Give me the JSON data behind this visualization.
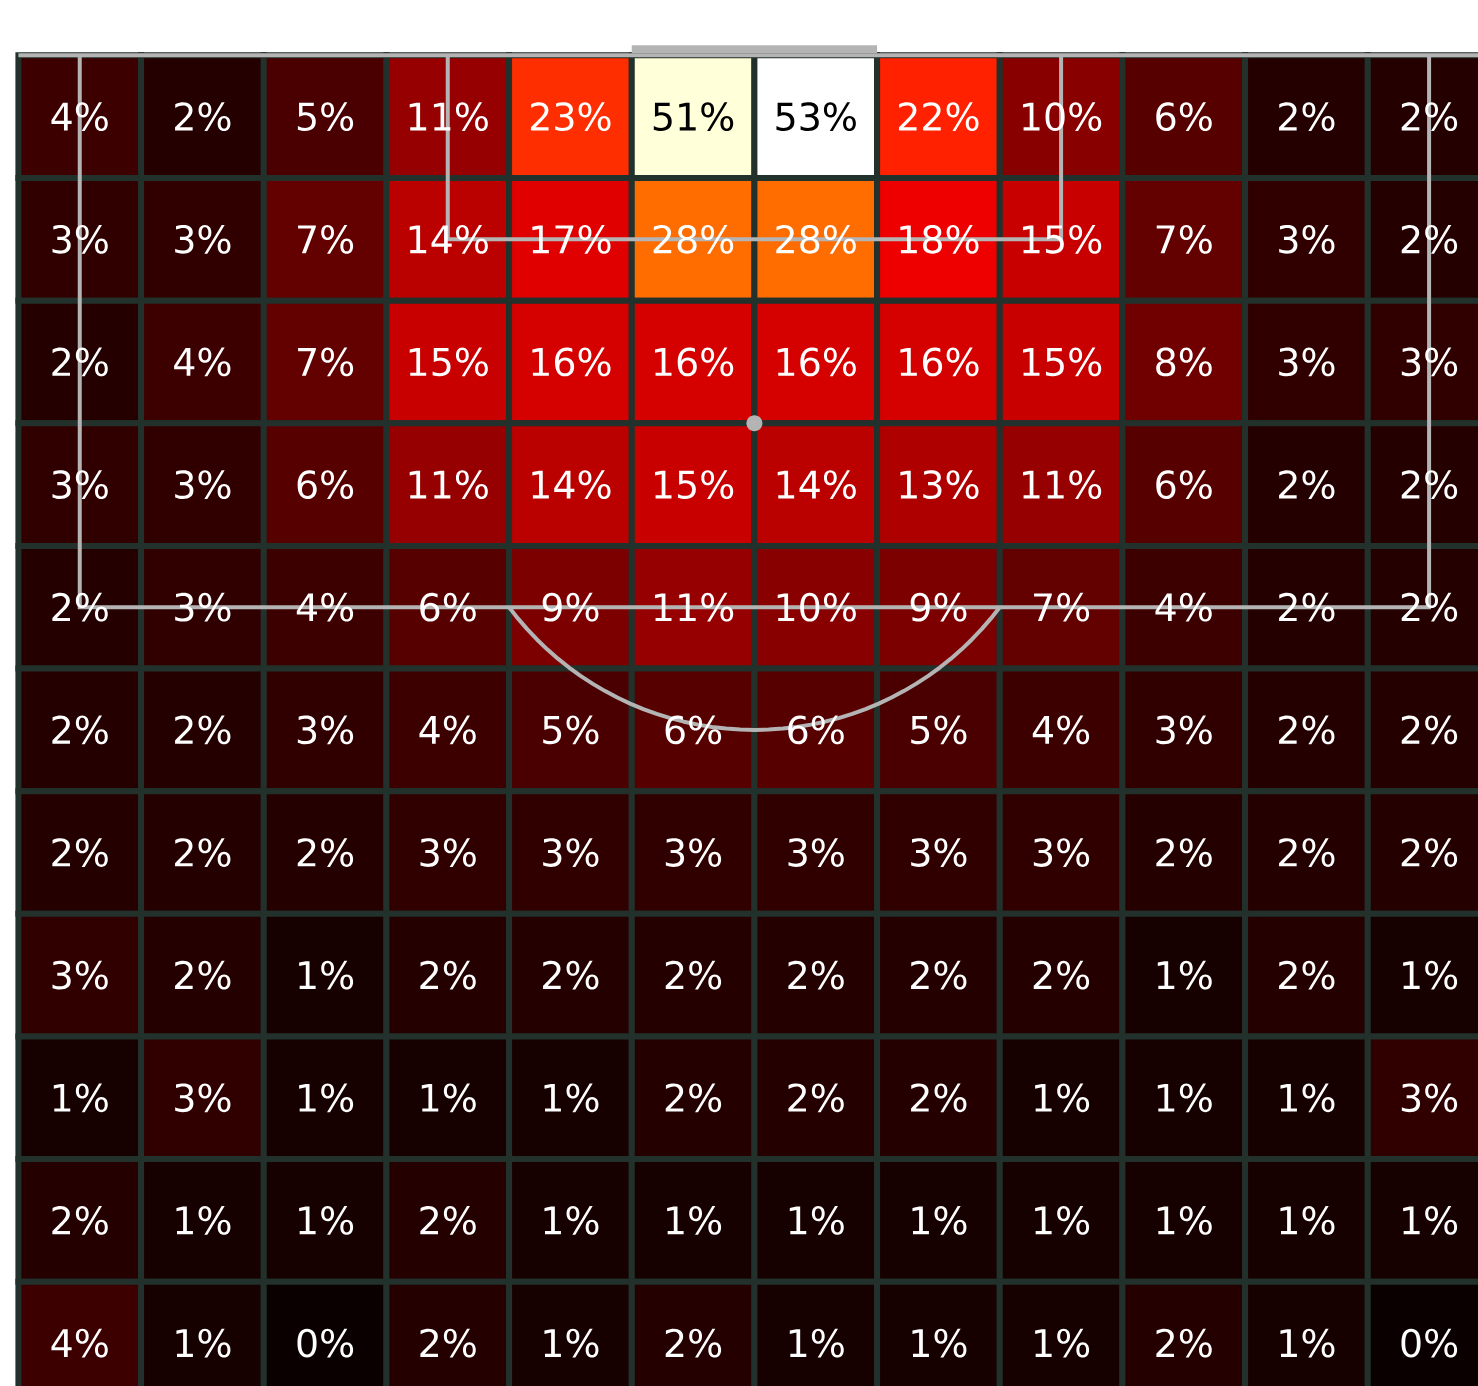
{
  "chart_data": {
    "type": "heatmap",
    "categories": [
      null,
      null,
      null,
      null,
      null,
      null,
      null,
      null,
      null,
      null,
      null,
      null
    ],
    "y_categories": [
      null,
      null,
      null,
      null,
      null,
      null,
      null,
      null,
      null,
      null,
      null
    ],
    "cells": [
      [
        4,
        2,
        5,
        11,
        23,
        51,
        53,
        22,
        10,
        6,
        2,
        2
      ],
      [
        3,
        3,
        7,
        14,
        17,
        28,
        28,
        18,
        15,
        7,
        3,
        2
      ],
      [
        2,
        4,
        7,
        15,
        16,
        16,
        16,
        16,
        15,
        8,
        3,
        3
      ],
      [
        3,
        3,
        6,
        11,
        14,
        15,
        14,
        13,
        11,
        6,
        2,
        2
      ],
      [
        2,
        3,
        4,
        6,
        9,
        11,
        10,
        9,
        7,
        4,
        2,
        2
      ],
      [
        2,
        2,
        3,
        4,
        5,
        6,
        6,
        5,
        4,
        3,
        2,
        2
      ],
      [
        2,
        2,
        2,
        3,
        3,
        3,
        3,
        3,
        3,
        2,
        2,
        2
      ],
      [
        3,
        2,
        1,
        2,
        2,
        2,
        2,
        2,
        2,
        1,
        2,
        1
      ],
      [
        1,
        3,
        1,
        1,
        1,
        2,
        2,
        2,
        1,
        1,
        1,
        3
      ],
      [
        2,
        1,
        1,
        2,
        1,
        1,
        1,
        1,
        1,
        1,
        1,
        1
      ],
      [
        4,
        1,
        0,
        2,
        1,
        2,
        1,
        1,
        1,
        2,
        1,
        0
      ]
    ],
    "cell_labels": [
      [
        "4%",
        "2%",
        "5%",
        "11%",
        "23%",
        "51%",
        "53%",
        "22%",
        "10%",
        "6%",
        "2%",
        "2%"
      ],
      [
        "3%",
        "3%",
        "7%",
        "14%",
        "17%",
        "28%",
        "28%",
        "18%",
        "15%",
        "7%",
        "3%",
        "2%"
      ],
      [
        "2%",
        "4%",
        "7%",
        "15%",
        "16%",
        "16%",
        "16%",
        "16%",
        "15%",
        "8%",
        "3%",
        "3%"
      ],
      [
        "3%",
        "3%",
        "6%",
        "11%",
        "14%",
        "15%",
        "14%",
        "13%",
        "11%",
        "6%",
        "2%",
        "2%"
      ],
      [
        "2%",
        "3%",
        "4%",
        "6%",
        "9%",
        "11%",
        "10%",
        "9%",
        "7%",
        "4%",
        "2%",
        "2%"
      ],
      [
        "2%",
        "2%",
        "3%",
        "4%",
        "5%",
        "6%",
        "6%",
        "5%",
        "4%",
        "3%",
        "2%",
        "2%"
      ],
      [
        "2%",
        "2%",
        "2%",
        "3%",
        "3%",
        "3%",
        "3%",
        "3%",
        "3%",
        "2%",
        "2%",
        "2%"
      ],
      [
        "3%",
        "2%",
        "1%",
        "2%",
        "2%",
        "2%",
        "2%",
        "2%",
        "2%",
        "1%",
        "2%",
        "1%"
      ],
      [
        "1%",
        "3%",
        "1%",
        "1%",
        "1%",
        "2%",
        "2%",
        "2%",
        "1%",
        "1%",
        "1%",
        "3%"
      ],
      [
        "2%",
        "1%",
        "1%",
        "2%",
        "1%",
        "1%",
        "1%",
        "1%",
        "1%",
        "1%",
        "1%",
        "1%"
      ],
      [
        "4%",
        "1%",
        "0%",
        "2%",
        "1%",
        "2%",
        "1%",
        "1%",
        "1%",
        "2%",
        "1%",
        "0%"
      ]
    ]
  }
}
